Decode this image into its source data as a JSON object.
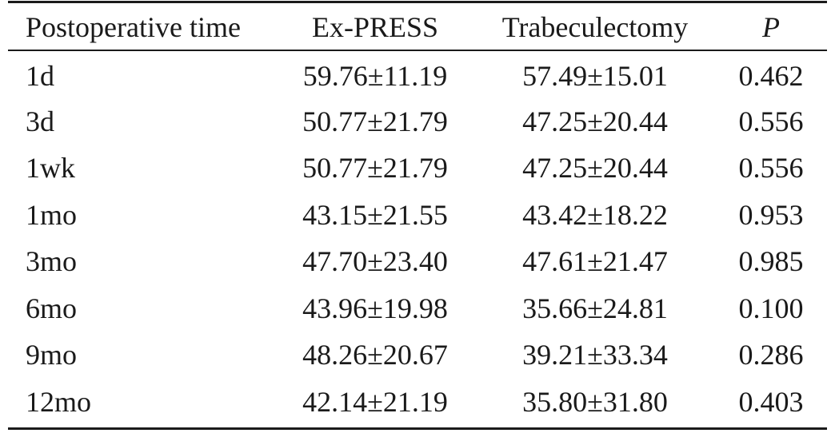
{
  "table": {
    "headers": [
      "Postoperative time",
      "Ex-PRESS",
      "Trabeculectomy",
      "P"
    ],
    "rows": [
      [
        "1d",
        "59.76±11.19",
        "57.49±15.01",
        "0.462"
      ],
      [
        "3d",
        "50.77±21.79",
        "47.25±20.44",
        "0.556"
      ],
      [
        "1wk",
        "50.77±21.79",
        "47.25±20.44",
        "0.556"
      ],
      [
        "1mo",
        "43.15±21.55",
        "43.42±18.22",
        "0.953"
      ],
      [
        "3mo",
        "47.70±23.40",
        "47.61±21.47",
        "0.985"
      ],
      [
        "6mo",
        "43.96±19.98",
        "35.66±24.81",
        "0.100"
      ],
      [
        "9mo",
        "48.26±20.67",
        "39.21±33.34",
        "0.286"
      ],
      [
        "12mo",
        "42.14±21.19",
        "35.80±31.80",
        "0.403"
      ]
    ]
  }
}
